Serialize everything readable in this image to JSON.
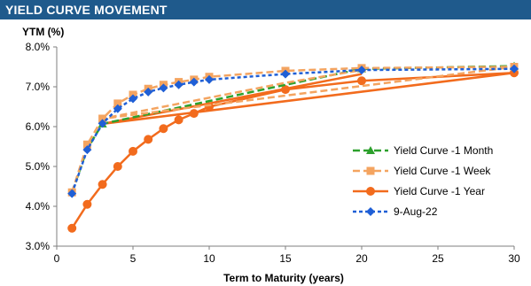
{
  "header": {
    "title": "YIELD CURVE MOVEMENT"
  },
  "chart_data": {
    "type": "line",
    "ylabel": "YTM (%)",
    "xlabel": "Term to Maturity (years)",
    "xlim": [
      0,
      30
    ],
    "ylim": [
      3.0,
      8.0
    ],
    "xticks": [
      0,
      5,
      10,
      15,
      20,
      25,
      30
    ],
    "yticks": [
      3.0,
      4.0,
      5.0,
      6.0,
      7.0,
      8.0
    ],
    "ytick_labels": [
      "3.0%",
      "4.0%",
      "5.0%",
      "6.0%",
      "7.0%",
      "8.0%"
    ],
    "grid": false,
    "legend_position": "right",
    "series": [
      {
        "name": "Yield Curve -1 Month",
        "color": "#2ca02c",
        "marker": "triangle",
        "dash": "dash",
        "points": [
          [
            1,
            4.35
          ],
          [
            2,
            5.45
          ],
          [
            3,
            6.07
          ],
          [
            15,
            7.05
          ],
          [
            20,
            7.45
          ],
          [
            30,
            7.52
          ]
        ],
        "markers": [
          [
            3,
            6.07
          ],
          [
            20,
            7.45
          ],
          [
            30,
            7.52
          ]
        ]
      },
      {
        "name": "Yield Curve -1 Week",
        "color": "#f4a460",
        "marker": "square",
        "dash": "dash",
        "points": [
          [
            1,
            4.35
          ],
          [
            2,
            5.55
          ],
          [
            3,
            6.2
          ],
          [
            4,
            6.58
          ],
          [
            5,
            6.8
          ],
          [
            6,
            6.95
          ],
          [
            7,
            7.05
          ],
          [
            8,
            7.12
          ],
          [
            9,
            7.18
          ],
          [
            10,
            7.25
          ],
          [
            15,
            7.4
          ],
          [
            20,
            7.47
          ],
          [
            30,
            7.5
          ],
          [
            3,
            6.2
          ],
          [
            15,
            7.1
          ],
          [
            20,
            7.42
          ]
        ],
        "markers": [
          [
            1,
            4.35
          ],
          [
            2,
            5.55
          ],
          [
            3,
            6.2
          ],
          [
            4,
            6.58
          ],
          [
            5,
            6.8
          ],
          [
            6,
            6.95
          ],
          [
            7,
            7.05
          ],
          [
            8,
            7.12
          ],
          [
            9,
            7.18
          ],
          [
            10,
            7.25
          ],
          [
            15,
            7.4
          ],
          [
            20,
            7.47
          ],
          [
            30,
            7.5
          ]
        ]
      },
      {
        "name": "Yield Curve -1 Year",
        "color": "#f26b1d",
        "marker": "circle",
        "dash": "solid",
        "points": [
          [
            1,
            3.45
          ],
          [
            2,
            4.05
          ],
          [
            3,
            4.55
          ],
          [
            4,
            5.0
          ],
          [
            5,
            5.38
          ],
          [
            6,
            5.68
          ],
          [
            7,
            5.95
          ],
          [
            8,
            6.17
          ],
          [
            9,
            6.33
          ],
          [
            10,
            6.5
          ],
          [
            15,
            6.93
          ],
          [
            20,
            7.15
          ],
          [
            30,
            7.35
          ],
          [
            3,
            6.07
          ],
          [
            15,
            6.95
          ],
          [
            20,
            7.32
          ]
        ],
        "markers": [
          [
            1,
            3.45
          ],
          [
            2,
            4.05
          ],
          [
            3,
            4.55
          ],
          [
            4,
            5.0
          ],
          [
            5,
            5.38
          ],
          [
            6,
            5.68
          ],
          [
            7,
            5.95
          ],
          [
            8,
            6.17
          ],
          [
            9,
            6.33
          ],
          [
            10,
            6.5
          ],
          [
            15,
            6.93
          ],
          [
            20,
            7.15
          ],
          [
            30,
            7.35
          ]
        ]
      },
      {
        "name": "9-Aug-22",
        "color": "#1f5fd6",
        "marker": "diamond",
        "dash": "dot",
        "points": [
          [
            1,
            4.32
          ],
          [
            2,
            5.42
          ],
          [
            3,
            6.08
          ],
          [
            4,
            6.45
          ],
          [
            5,
            6.7
          ],
          [
            6,
            6.87
          ],
          [
            7,
            6.97
          ],
          [
            8,
            7.05
          ],
          [
            9,
            7.12
          ],
          [
            10,
            7.18
          ],
          [
            15,
            7.32
          ],
          [
            20,
            7.42
          ],
          [
            30,
            7.45
          ]
        ],
        "markers": [
          [
            1,
            4.32
          ],
          [
            2,
            5.42
          ],
          [
            3,
            6.08
          ],
          [
            4,
            6.45
          ],
          [
            5,
            6.7
          ],
          [
            6,
            6.87
          ],
          [
            7,
            6.97
          ],
          [
            8,
            7.05
          ],
          [
            9,
            7.12
          ],
          [
            10,
            7.18
          ],
          [
            15,
            7.32
          ],
          [
            20,
            7.42
          ],
          [
            30,
            7.45
          ]
        ]
      }
    ]
  }
}
